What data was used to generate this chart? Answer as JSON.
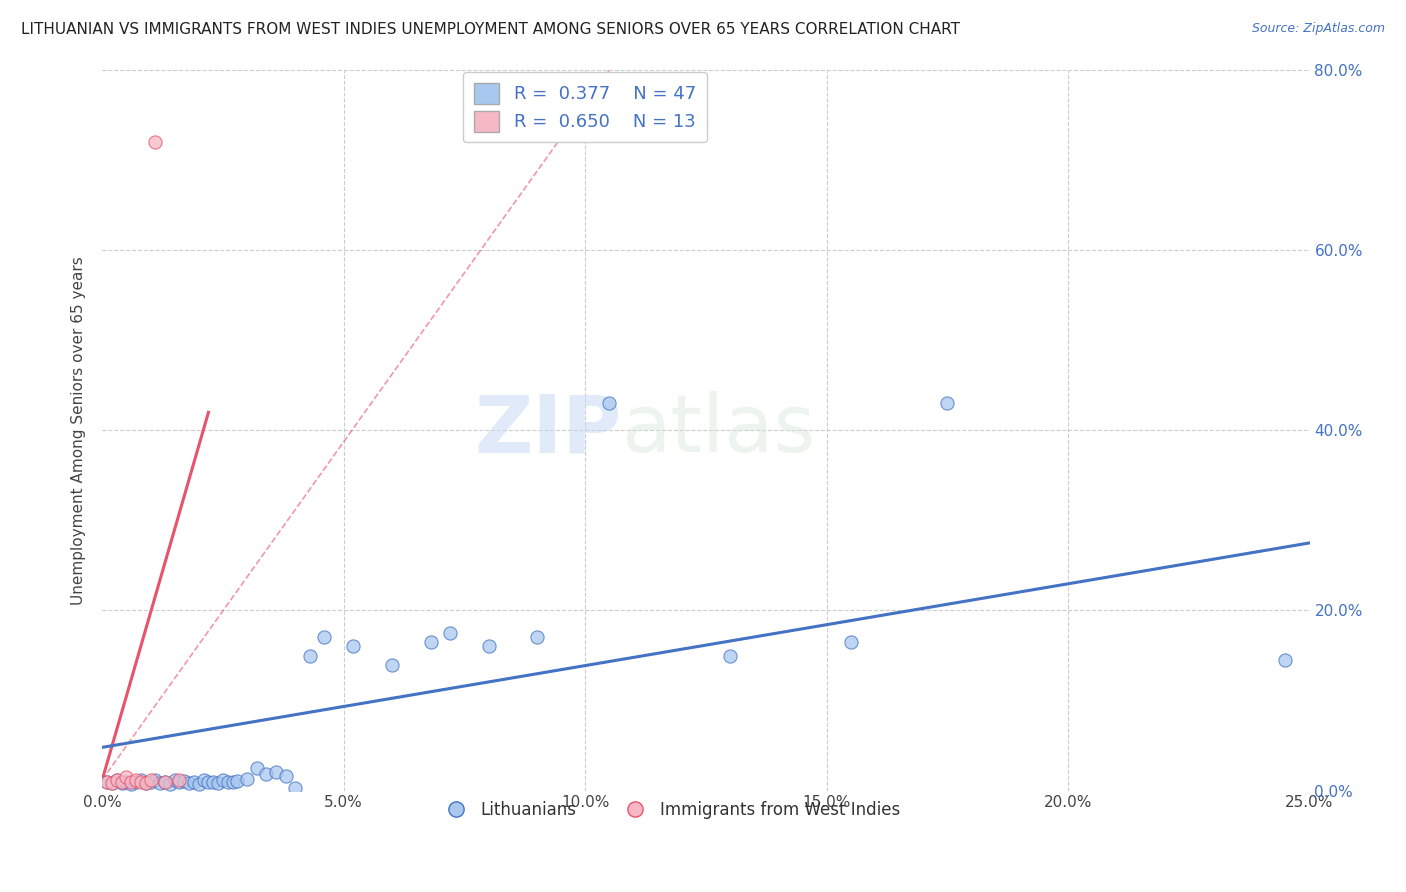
{
  "title": "LITHUANIAN VS IMMIGRANTS FROM WEST INDIES UNEMPLOYMENT AMONG SENIORS OVER 65 YEARS CORRELATION CHART",
  "source": "Source: ZipAtlas.com",
  "ylabel": "Unemployment Among Seniors over 65 years",
  "xlim": [
    0,
    0.25
  ],
  "ylim": [
    0,
    0.8
  ],
  "xticks": [
    0.0,
    0.05,
    0.1,
    0.15,
    0.2,
    0.25
  ],
  "yticks": [
    0.0,
    0.2,
    0.4,
    0.6,
    0.8
  ],
  "xticklabels": [
    "0.0%",
    "5.0%",
    "10.0%",
    "15.0%",
    "20.0%",
    "25.0%"
  ],
  "yticklabels": [
    "0.0%",
    "20.0%",
    "40.0%",
    "60.0%",
    "80.0%"
  ],
  "blue_R": 0.377,
  "blue_N": 47,
  "pink_R": 0.65,
  "pink_N": 13,
  "blue_color": "#a8c8f0",
  "pink_color": "#f5b8c4",
  "blue_line_color": "#4472C4",
  "pink_line_color": "#E8536A",
  "watermark_zip": "ZIP",
  "watermark_atlas": "atlas",
  "legend_labels": [
    "Lithuanians",
    "Immigrants from West Indies"
  ],
  "blue_scatter_x": [
    0.001,
    0.002,
    0.003,
    0.004,
    0.005,
    0.006,
    0.007,
    0.008,
    0.009,
    0.01,
    0.011,
    0.012,
    0.013,
    0.014,
    0.015,
    0.016,
    0.017,
    0.018,
    0.019,
    0.02,
    0.021,
    0.022,
    0.023,
    0.024,
    0.025,
    0.026,
    0.027,
    0.028,
    0.03,
    0.032,
    0.034,
    0.036,
    0.038,
    0.04,
    0.043,
    0.046,
    0.052,
    0.06,
    0.068,
    0.072,
    0.08,
    0.09,
    0.105,
    0.13,
    0.155,
    0.175,
    0.245
  ],
  "blue_scatter_y": [
    0.01,
    0.008,
    0.012,
    0.008,
    0.01,
    0.007,
    0.009,
    0.012,
    0.008,
    0.01,
    0.012,
    0.008,
    0.01,
    0.007,
    0.012,
    0.009,
    0.011,
    0.008,
    0.01,
    0.007,
    0.012,
    0.009,
    0.01,
    0.008,
    0.012,
    0.01,
    0.009,
    0.011,
    0.013,
    0.025,
    0.018,
    0.021,
    0.016,
    0.003,
    0.15,
    0.17,
    0.16,
    0.14,
    0.165,
    0.175,
    0.16,
    0.17,
    0.43,
    0.15,
    0.165,
    0.43,
    0.145
  ],
  "pink_scatter_x": [
    0.001,
    0.002,
    0.003,
    0.004,
    0.005,
    0.006,
    0.007,
    0.008,
    0.009,
    0.01,
    0.011,
    0.013,
    0.016
  ],
  "pink_scatter_y": [
    0.01,
    0.008,
    0.012,
    0.01,
    0.015,
    0.01,
    0.012,
    0.01,
    0.008,
    0.012,
    0.72,
    0.01,
    0.012
  ],
  "blue_line_x0": 0.0,
  "blue_line_x1": 0.25,
  "blue_line_y0": 0.048,
  "blue_line_y1": 0.275,
  "pink_line_solid_x0": 0.0,
  "pink_line_solid_x1": 0.022,
  "pink_line_solid_y0": 0.012,
  "pink_line_solid_y1": 0.42,
  "pink_line_dash_x0": 0.0,
  "pink_line_dash_x1": 0.105,
  "pink_line_dash_y0": 0.012,
  "pink_line_dash_y1": 0.8
}
